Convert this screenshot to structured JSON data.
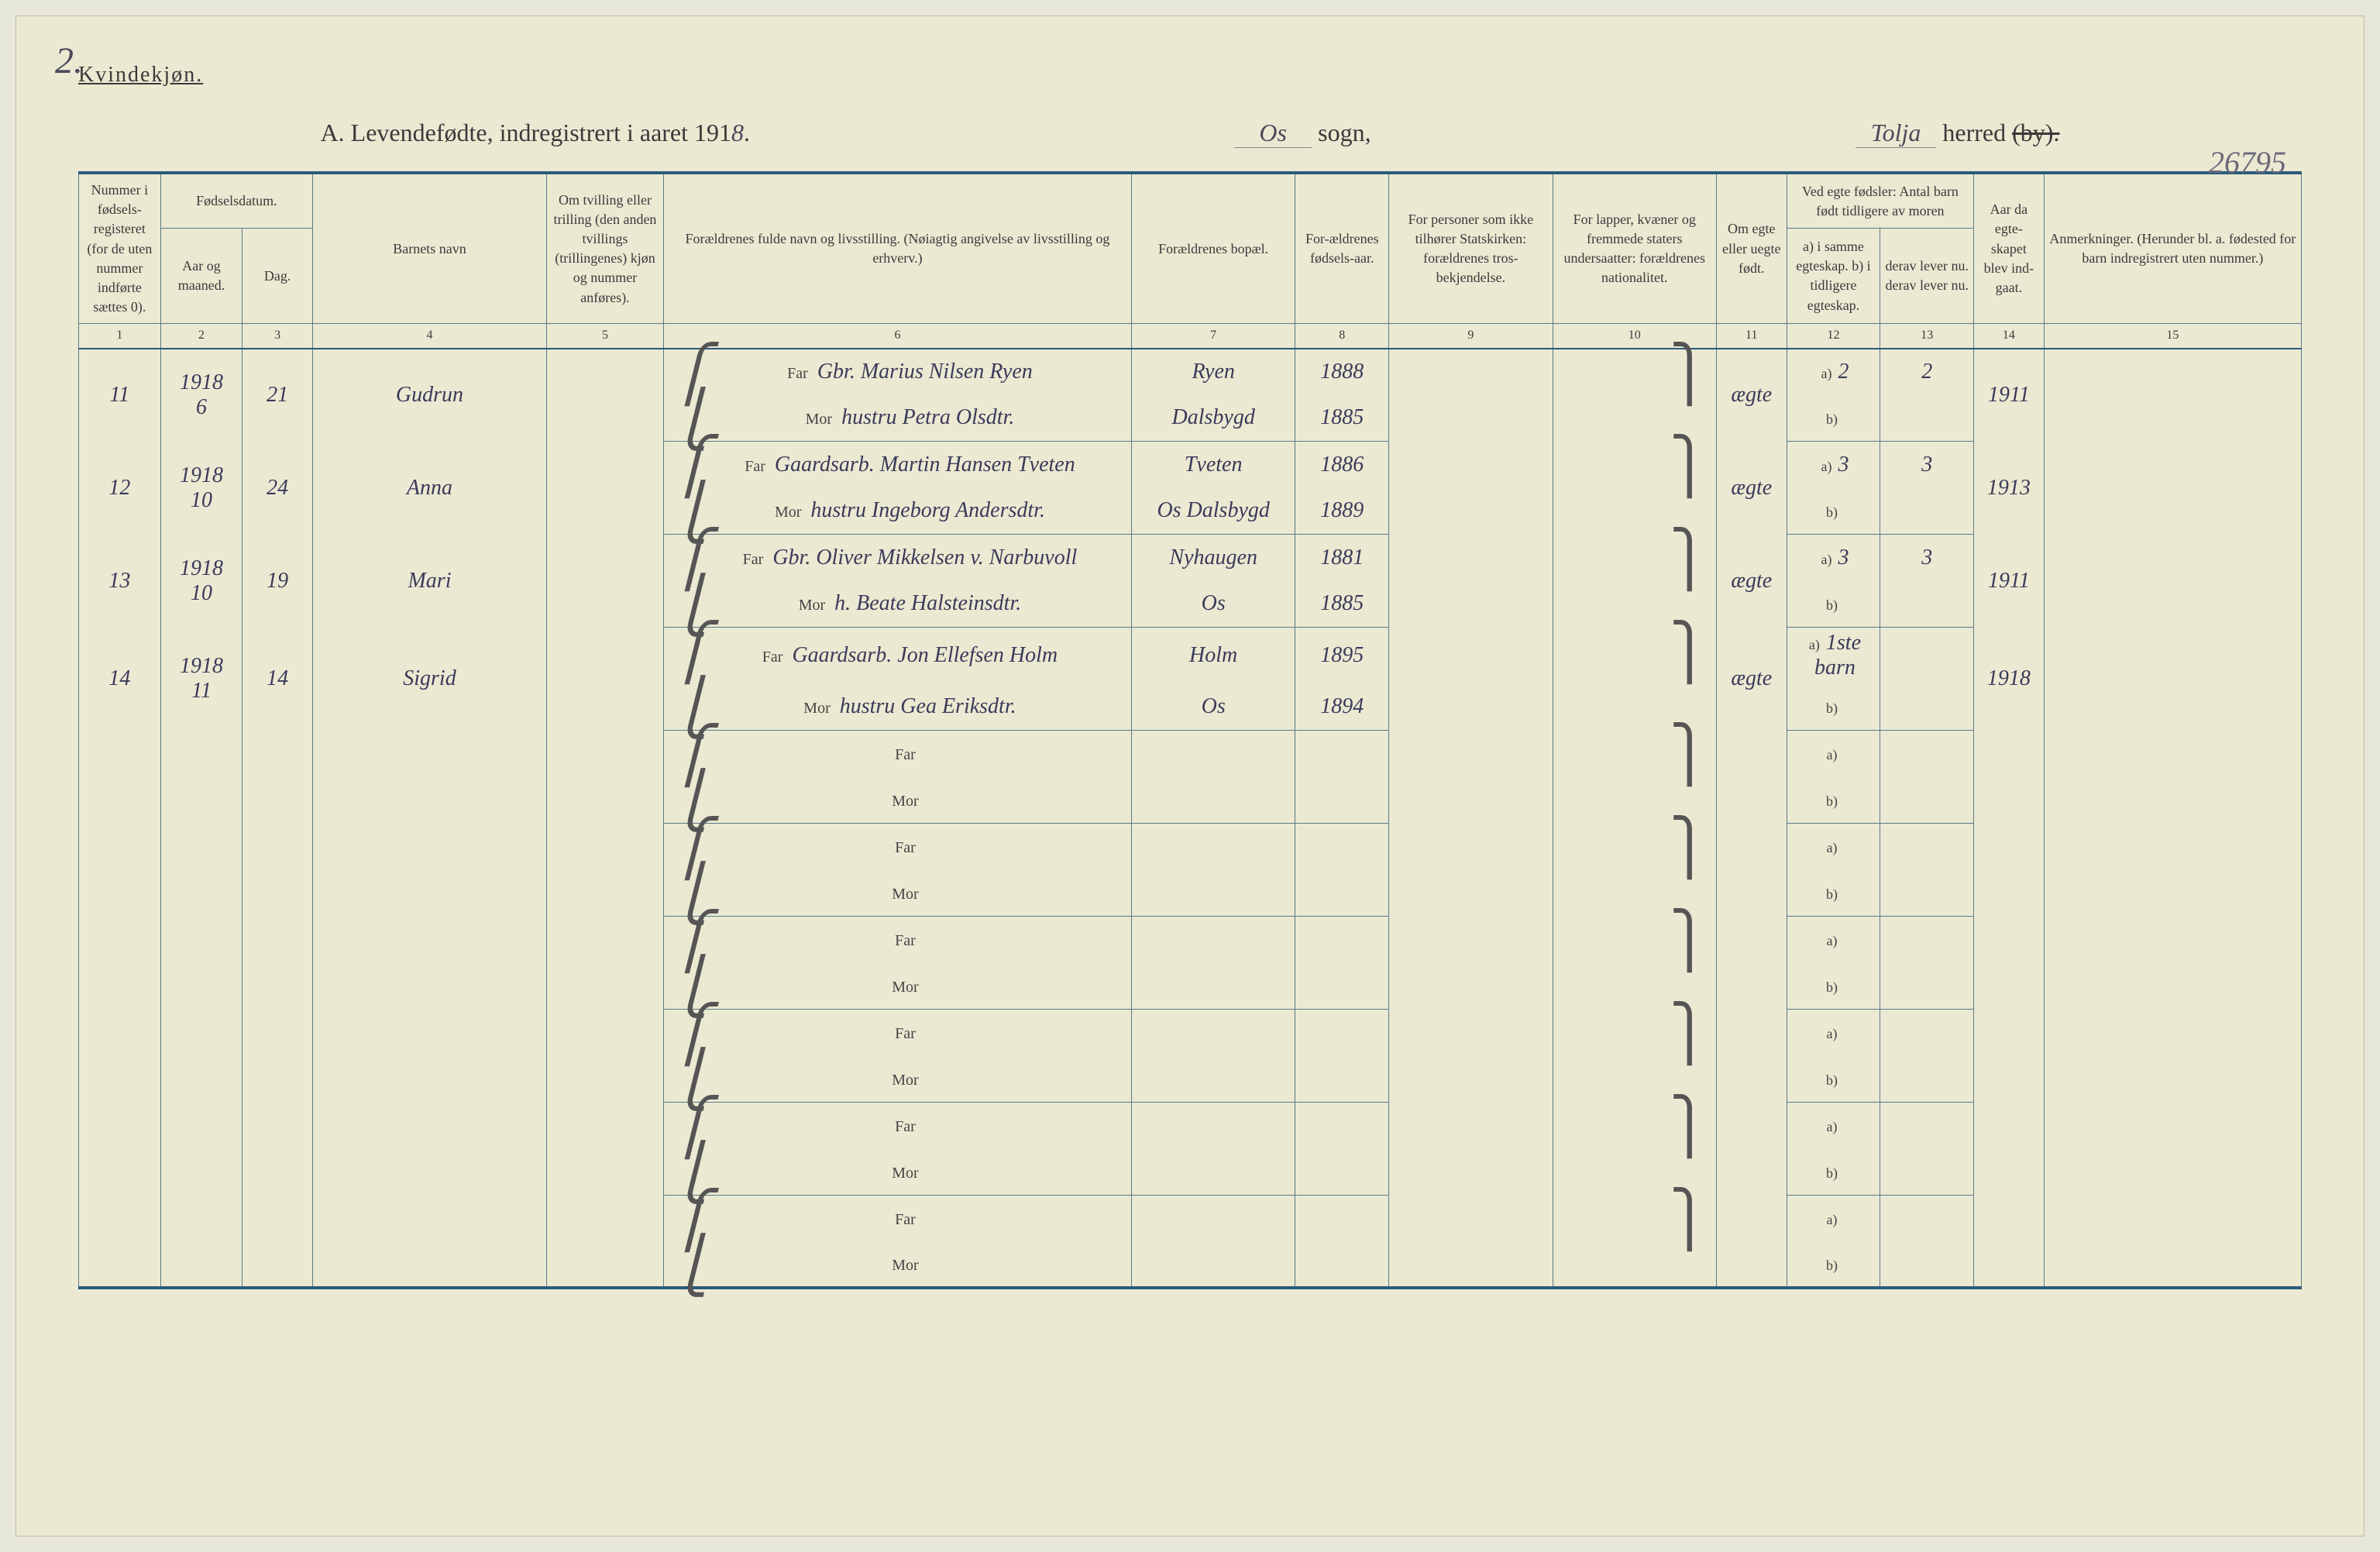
{
  "page_number": "2.",
  "header_gender": "Kvindekjøn.",
  "title_main": "A. Levendefødte, indregistrert i aaret 191",
  "title_year_suffix": "8",
  "title_sogn_label": "sogn,",
  "title_sogn_value": "Os",
  "title_herred_label": "herred",
  "title_by_strike": "(by).",
  "title_herred_value": "Tolja",
  "ref_number": "26795",
  "columns": {
    "c1": "Nummer i fødsels-registeret (for de uten nummer indførte sættes 0).",
    "c2_group": "Fødselsdatum.",
    "c2": "Aar og maaned.",
    "c3": "Dag.",
    "c4": "Barnets navn",
    "c5": "Om tvilling eller trilling (den anden tvillings (trillingenes) kjøn og nummer anføres).",
    "c6": "Forældrenes fulde navn og livsstilling. (Nøiagtig angivelse av livsstilling og erhverv.)",
    "c7": "Forældrenes bopæl.",
    "c8": "For-ældrenes fødsels-aar.",
    "c9": "For personer som ikke tilhører Statskirken: forældrenes tros-bekjendelse.",
    "c10": "For lapper, kvæner og fremmede staters undersaatter: forældrenes nationalitet.",
    "c11": "Om egte eller uegte født.",
    "c12_13_group": "Ved egte fødsler: Antal barn født tidligere av moren",
    "c12": "a) i samme egteskap. b) i tidligere egteskap.",
    "c13": "derav lever nu. derav lever nu.",
    "c14": "Aar da egte-skapet blev ind-gaat.",
    "c15": "Anmerkninger. (Herunder bl. a. fødested for barn indregistrert uten nummer.)"
  },
  "col_numbers": [
    "1",
    "2",
    "3",
    "4",
    "5",
    "6",
    "7",
    "8",
    "9",
    "10",
    "11",
    "12",
    "13",
    "14",
    "15"
  ],
  "parent_labels": {
    "far": "Far",
    "mor": "Mor"
  },
  "sub_labels": {
    "a": "a)",
    "b": "b)"
  },
  "rows": [
    {
      "num": "11",
      "year_month": "1918 6",
      "day": "21",
      "name": "Gudrun",
      "far_name": "Gbr. Marius Nilsen Ryen",
      "far_bopael": "Ryen",
      "far_year": "1888",
      "mor_name": "hustru Petra Olsdtr.",
      "mor_bopael": "Dalsbygd",
      "mor_year": "1885",
      "egte": "ægte",
      "a12": "2",
      "a13": "2",
      "year_married": "1911"
    },
    {
      "num": "12",
      "year_month": "1918 10",
      "day": "24",
      "name": "Anna",
      "far_name": "Gaardsarb. Martin Hansen Tveten",
      "far_bopael": "Tveten",
      "far_year": "1886",
      "mor_name": "hustru Ingeborg Andersdtr.",
      "mor_bopael": "Os Dalsbygd",
      "mor_year": "1889",
      "egte": "ægte",
      "a12": "3",
      "a13": "3",
      "year_married": "1913"
    },
    {
      "num": "13",
      "year_month": "1918 10",
      "day": "19",
      "name": "Mari",
      "far_name": "Gbr. Oliver Mikkelsen v. Narbuvoll",
      "far_bopael": "Nyhaugen",
      "far_year": "1881",
      "mor_name": "h. Beate Halsteinsdtr.",
      "mor_bopael": "Os",
      "mor_year": "1885",
      "egte": "ægte",
      "a12": "3",
      "a13": "3",
      "year_married": "1911"
    },
    {
      "num": "14",
      "year_month": "1918 11",
      "day": "14",
      "name": "Sigrid",
      "far_name": "Gaardsarb. Jon Ellefsen Holm",
      "far_bopael": "Holm",
      "far_year": "1895",
      "mor_name": "hustru Gea Eriksdtr.",
      "mor_bopael": "Os",
      "mor_year": "1894",
      "egte": "ægte",
      "a12": "1ste barn",
      "a13": "",
      "year_married": "1918"
    },
    {
      "num": "",
      "year_month": "",
      "day": "",
      "name": "",
      "far_name": "",
      "far_bopael": "",
      "far_year": "",
      "mor_name": "",
      "mor_bopael": "",
      "mor_year": "",
      "egte": "",
      "a12": "",
      "a13": "",
      "year_married": ""
    },
    {
      "num": "",
      "year_month": "",
      "day": "",
      "name": "",
      "far_name": "",
      "far_bopael": "",
      "far_year": "",
      "mor_name": "",
      "mor_bopael": "",
      "mor_year": "",
      "egte": "",
      "a12": "",
      "a13": "",
      "year_married": ""
    },
    {
      "num": "",
      "year_month": "",
      "day": "",
      "name": "",
      "far_name": "",
      "far_bopael": "",
      "far_year": "",
      "mor_name": "",
      "mor_bopael": "",
      "mor_year": "",
      "egte": "",
      "a12": "",
      "a13": "",
      "year_married": ""
    },
    {
      "num": "",
      "year_month": "",
      "day": "",
      "name": "",
      "far_name": "",
      "far_bopael": "",
      "far_year": "",
      "mor_name": "",
      "mor_bopael": "",
      "mor_year": "",
      "egte": "",
      "a12": "",
      "a13": "",
      "year_married": ""
    },
    {
      "num": "",
      "year_month": "",
      "day": "",
      "name": "",
      "far_name": "",
      "far_bopael": "",
      "far_year": "",
      "mor_name": "",
      "mor_bopael": "",
      "mor_year": "",
      "egte": "",
      "a12": "",
      "a13": "",
      "year_married": ""
    },
    {
      "num": "",
      "year_month": "",
      "day": "",
      "name": "",
      "far_name": "",
      "far_bopael": "",
      "far_year": "",
      "mor_name": "",
      "mor_bopael": "",
      "mor_year": "",
      "egte": "",
      "a12": "",
      "a13": "",
      "year_married": ""
    }
  ],
  "colors": {
    "page_bg": "#ebe9d2",
    "rule": "#2a5a7a",
    "line": "#5a7a8a",
    "ink": "#3a3a5a",
    "print": "#3a3a3a"
  }
}
